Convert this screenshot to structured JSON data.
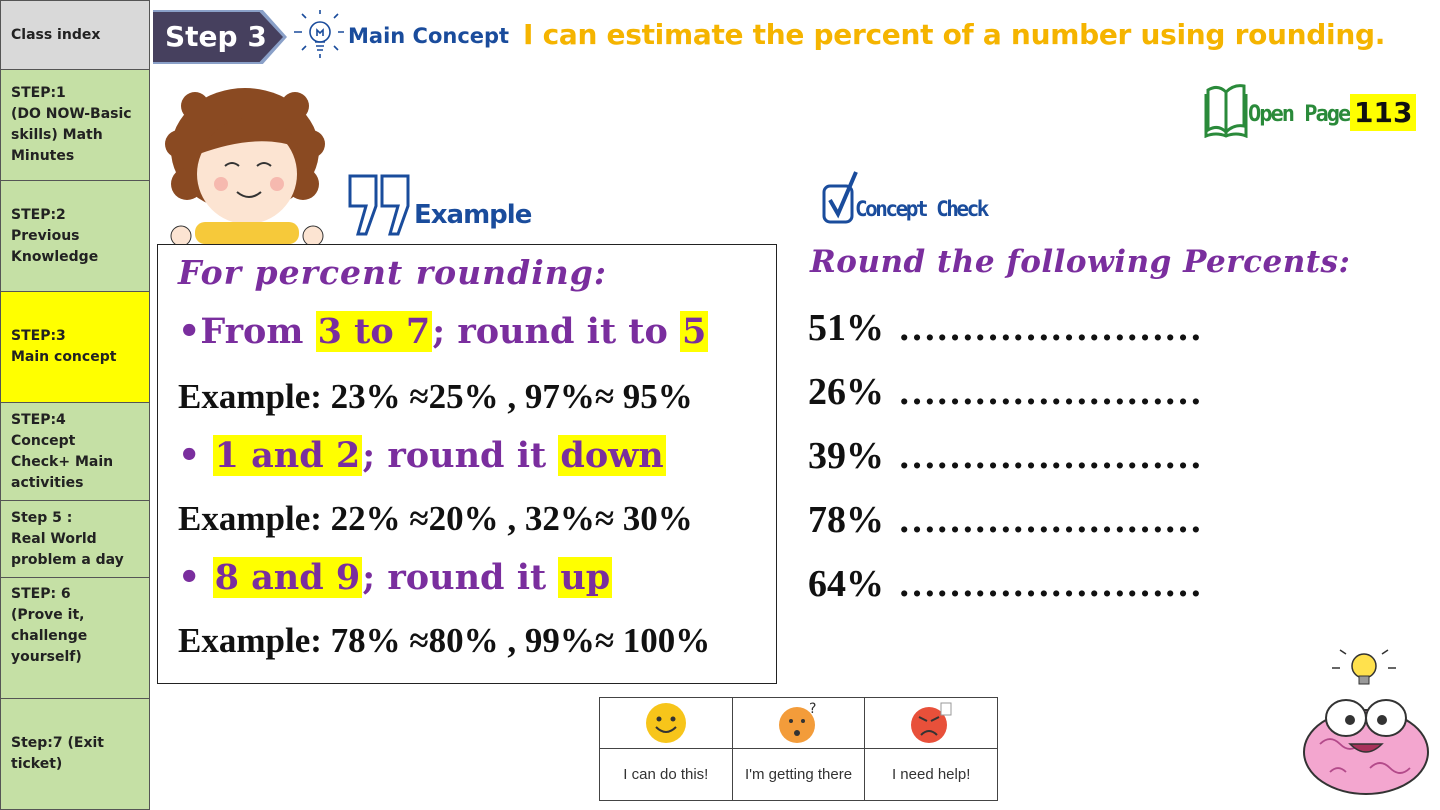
{
  "sidebar": {
    "items": [
      {
        "label": "Class index",
        "active": false
      },
      {
        "label": "STEP:1\n(DO NOW-Basic skills) Math Minutes",
        "active": false
      },
      {
        "label": "STEP:2\nPrevious Knowledge",
        "active": false
      },
      {
        "label": "STEP:3\nMain concept",
        "active": true
      },
      {
        "label": "STEP:4\nConcept Check+ Main activities",
        "active": false
      },
      {
        "label": "Step 5 :\nReal World problem a day",
        "active": false
      },
      {
        "label": "STEP: 6\n(Prove it, challenge yourself)",
        "active": false
      },
      {
        "label": "Step:7 (Exit ticket)",
        "active": false
      }
    ]
  },
  "header": {
    "step_label": "Step 3",
    "main_concept_label": "Main Concept",
    "objective": "I can estimate the percent of a number using rounding."
  },
  "open_page": {
    "label": "Open Page",
    "number": "113"
  },
  "example": {
    "title": "Example",
    "heading": "For percent rounding:",
    "rule1": {
      "bullet": "•",
      "pre": "From ",
      "range": "3 to 7",
      "mid": "; round it to ",
      "target": "5"
    },
    "example1": "Example: 23% ≈25% , 97%≈ 95%",
    "rule2": {
      "bullet": "• ",
      "range": "1 and 2",
      "mid": "; round it ",
      "target": "down"
    },
    "example2": "Example: 22% ≈20% , 32%≈ 30%",
    "rule3": {
      "bullet": "• ",
      "range": "8 and 9",
      "mid": "; round it ",
      "target": "up"
    },
    "example3": "Example: 78% ≈80% , 99%≈ 100%"
  },
  "concept_check": {
    "title": "Concept Check",
    "heading": "Round the following Percents:",
    "items": [
      {
        "value": "51%",
        "blank": "……………………"
      },
      {
        "value": "26%",
        "blank": "……………………"
      },
      {
        "value": "39%",
        "blank": "……………………"
      },
      {
        "value": "78%",
        "blank": "……………………"
      },
      {
        "value": "64%",
        "blank": "……………………"
      }
    ]
  },
  "feedback": {
    "options": [
      {
        "label": "I can do this!",
        "color": "#f7c51a"
      },
      {
        "label": "I'm getting there",
        "color": "#f39c3a"
      },
      {
        "label": "I need help!",
        "color": "#e8503a"
      }
    ]
  },
  "colors": {
    "accent_purple": "#7a2e9e",
    "accent_blue": "#1a4c9c",
    "objective_yellow": "#f5b400",
    "highlight": "#ffff00"
  }
}
